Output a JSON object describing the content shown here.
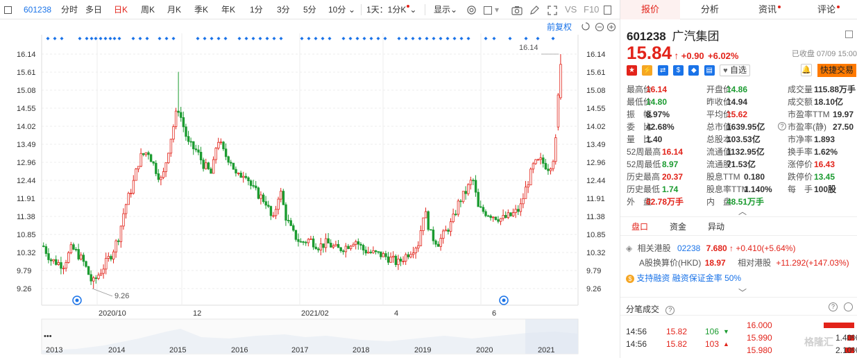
{
  "toolbar": {
    "code": "601238",
    "items": [
      "分时",
      "多日",
      "日K",
      "周K",
      "月K",
      "季K",
      "年K",
      "1分",
      "3分",
      "5分",
      "10分"
    ],
    "active_index": 2,
    "intraday": "1天：1分K",
    "display": "显示",
    "vs": "VS",
    "f10": "F10"
  },
  "chart": {
    "fuquan": "前复权",
    "y_ticks": [
      "16.14",
      "15.61",
      "15.08",
      "14.55",
      "14.02",
      "13.49",
      "12.96",
      "12.44",
      "11.91",
      "11.38",
      "10.85",
      "10.32",
      "9.79",
      "9.26"
    ],
    "x_labels": [
      "2020/10",
      "12",
      "2021/02",
      "4",
      "6"
    ],
    "max_label": "16.14",
    "min_label": "9.26",
    "overview_years": [
      "2013",
      "2014",
      "2015",
      "2016",
      "2017",
      "2018",
      "2019",
      "2020",
      "2021"
    ],
    "overview_dots": "•••"
  },
  "chart_data": {
    "type": "candlestick",
    "x_range": [
      "2020-08",
      "2021-07-09"
    ],
    "ylim": [
      9.0,
      16.4
    ],
    "high_label": 16.14,
    "low_label": 9.26
  },
  "header": {
    "tabs": [
      "报价",
      "分析",
      "资讯",
      "评论"
    ],
    "code": "601238",
    "name": "广汽集团",
    "price": "15.84",
    "arrow": "↑",
    "change": "+0.90",
    "pct": "+6.02%",
    "status": "已收盘 07/09 15:00",
    "zixuan": "自选",
    "kuaijie": "快捷交易"
  },
  "quote": [
    [
      [
        "最高价",
        "16.14",
        "up"
      ],
      [
        "开盘价",
        "14.86",
        "down"
      ],
      [
        "成交量",
        "115.88万手",
        "flat"
      ]
    ],
    [
      [
        "最低价",
        "14.80",
        "down"
      ],
      [
        "昨收价",
        "14.94",
        "flat"
      ],
      [
        "成交额",
        "18.10亿",
        "flat"
      ]
    ],
    [
      [
        "振　幅",
        "8.97%",
        "flat"
      ],
      [
        "平均价",
        "15.62",
        "up"
      ],
      [
        "市盈率TTM",
        "19.97",
        "flat"
      ]
    ],
    [
      [
        "委　比",
        "42.68%",
        "flat"
      ],
      [
        "总市值",
        "1639.95亿",
        "flat"
      ],
      [
        "市盈率(静)",
        "27.50",
        "flat"
      ]
    ],
    [
      [
        "量　比",
        "1.40",
        "flat"
      ],
      [
        "总股本",
        "103.53亿",
        "flat"
      ],
      [
        "市净率",
        "1.893",
        "flat"
      ]
    ],
    [
      [
        "52周最高",
        "16.14",
        "up"
      ],
      [
        "流通值",
        "1132.95亿",
        "flat"
      ],
      [
        "换手率",
        "1.62%",
        "flat"
      ]
    ],
    [
      [
        "52周最低",
        "8.97",
        "down"
      ],
      [
        "流通股",
        "71.53亿",
        "flat"
      ],
      [
        "涨停价",
        "16.43",
        "up"
      ]
    ],
    [
      [
        "历史最高",
        "20.37",
        "up"
      ],
      [
        "股息TTM",
        "0.180",
        "flat"
      ],
      [
        "跌停价",
        "13.45",
        "down"
      ]
    ],
    [
      [
        "历史最低",
        "1.74",
        "down"
      ],
      [
        "股息率TTM",
        "1.140%",
        "flat"
      ],
      [
        "每　手",
        "100股",
        "flat"
      ]
    ],
    [
      [
        "外　盘",
        "62.78万手",
        "up"
      ],
      [
        "内　盘",
        "48.51万手",
        "down"
      ]
    ]
  ],
  "subtabs": [
    "盘口",
    "资金",
    "异动"
  ],
  "hk": {
    "label": "相关港股",
    "code": "02238",
    "price": "7.680",
    "arrow": "↑",
    "change": "+0.410(+5.64%)",
    "ah_label": "A股换算价(HKD)",
    "ah_value": "18.97",
    "premium_label": "相对港股",
    "premium_value": "+11.292(+147.03%)",
    "margin_a": "支持融资",
    "margin_b": "融资保证金率",
    "margin_rate": "50%"
  },
  "trades": {
    "title": "分笔成交",
    "rows": [
      {
        "time": "14:56",
        "price": "15.82",
        "vol": "106",
        "dir": "down"
      },
      {
        "time": "14:56",
        "price": "15.82",
        "vol": "103",
        "dir": "up"
      }
    ],
    "depth": [
      {
        "price": "16.000",
        "pct": "",
        "w": 0.55
      },
      {
        "price": "15.990",
        "pct": "1.40%",
        "w": 0.12
      },
      {
        "price": "15.980",
        "pct": "2.10%",
        "w": 0.18
      }
    ],
    "watermark": "格隆汇"
  },
  "colors": {
    "up": "#e2231a",
    "down": "#1b9b30",
    "accent": "#e2231a",
    "blue": "#1a73e8"
  }
}
